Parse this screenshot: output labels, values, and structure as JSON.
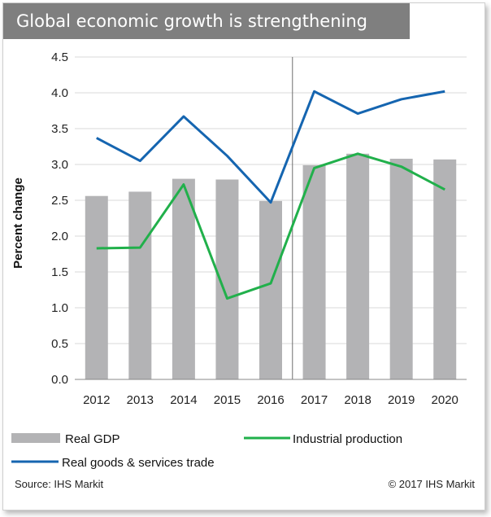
{
  "title": "Global economic growth is strengthening",
  "source": "Source: IHS Markit",
  "copyright": "© 2017 IHS Markit",
  "chart_data": {
    "type": "bar",
    "categories": [
      "2012",
      "2013",
      "2014",
      "2015",
      "2016",
      "2017",
      "2018",
      "2019",
      "2020"
    ],
    "ylabel": "Percent change",
    "xlabel": "",
    "ylim": [
      0,
      4.5
    ],
    "yticks": [
      "0.0",
      "0.5",
      "1.0",
      "1.5",
      "2.0",
      "2.5",
      "3.0",
      "3.5",
      "4.0",
      "4.5"
    ],
    "grid": true,
    "forecast_divider_after": "2016",
    "legend_position": "bottom",
    "series": [
      {
        "name": "Real GDP",
        "kind": "bar",
        "color": "#b3b3b5",
        "values": [
          2.56,
          2.62,
          2.8,
          2.79,
          2.49,
          2.99,
          3.15,
          3.08,
          3.07
        ]
      },
      {
        "name": "Industrial production",
        "kind": "line",
        "color": "#21b04b",
        "values": [
          1.83,
          1.84,
          2.72,
          1.13,
          1.34,
          2.95,
          3.15,
          2.97,
          2.65
        ]
      },
      {
        "name": "Real goods & services trade",
        "kind": "line",
        "color": "#1565b0",
        "values": [
          3.37,
          3.05,
          3.67,
          3.12,
          2.47,
          4.02,
          3.71,
          3.91,
          4.02
        ]
      }
    ]
  }
}
